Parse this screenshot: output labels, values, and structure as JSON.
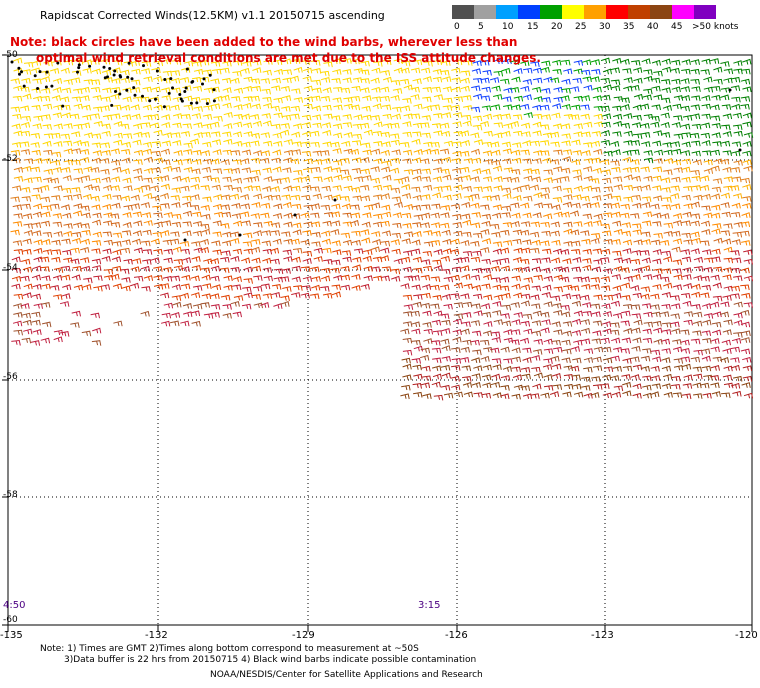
{
  "title": "Rapidscat Corrected Winds(12.5KM) v1.1 20150715 ascending",
  "notice": {
    "line1": "Note: black circles have been added to the wind barbs, wherever less than",
    "line2": "optimal wind retrieval conditions are met due to the ISS attitude changes."
  },
  "legend": {
    "ticks": [
      "0",
      "5",
      "10",
      "15",
      "20",
      "25",
      "30",
      "35",
      "40",
      "45",
      ">50 knots"
    ],
    "colors": [
      "#505050",
      "#a0a0a0",
      "#00a0ff",
      "#0040ff",
      "#00a000",
      "#ffff00",
      "#ffa000",
      "#ff0000",
      "#c04000",
      "#8b4513",
      "#ff00ff",
      "#8000c0"
    ]
  },
  "axes": {
    "lat_labels": [
      "-50",
      "-52",
      "-54",
      "-56",
      "-58",
      "-60"
    ],
    "lon_labels": [
      "-135",
      "-132",
      "-129",
      "-126",
      "-123",
      "-120"
    ]
  },
  "times": {
    "left": "4:50",
    "right": "3:15"
  },
  "footnotes": {
    "line1": "Note: 1) Times are GMT 2)Times along bottom correspond to measurement at ~50S",
    "line2": "3)Data buffer is 22 hrs from 20150715 4) Black wind barbs indicate possible contamination",
    "credit": "NOAA/NESDIS/Center for Satellite Applications and Research"
  }
}
